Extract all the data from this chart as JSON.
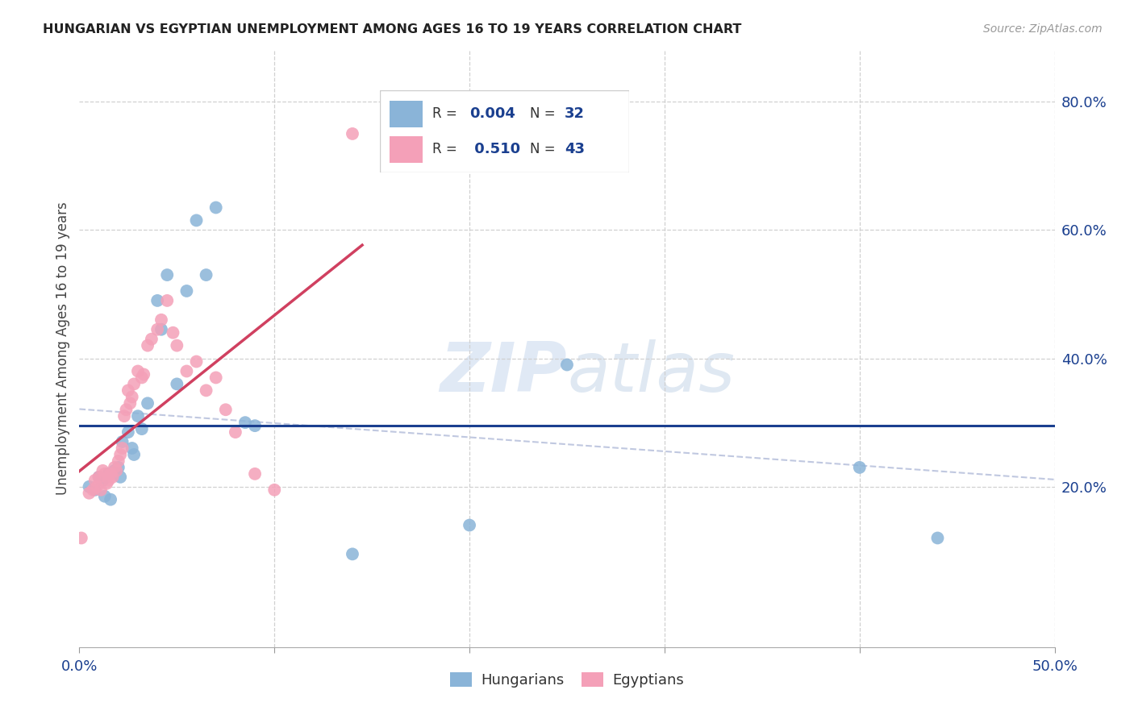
{
  "title": "HUNGARIAN VS EGYPTIAN UNEMPLOYMENT AMONG AGES 16 TO 19 YEARS CORRELATION CHART",
  "source": "Source: ZipAtlas.com",
  "ylabel": "Unemployment Among Ages 16 to 19 years",
  "xlim": [
    0.0,
    0.5
  ],
  "ylim": [
    -0.05,
    0.88
  ],
  "watermark_zip": "ZIP",
  "watermark_atlas": "atlas",
  "hungarian_color": "#8ab4d8",
  "egyptian_color": "#f4a0b8",
  "hungarian_trend_color": "#1a3f8f",
  "egyptian_trend_color": "#d04060",
  "hungarian_dashed_color": "#c0c8e0",
  "hungarian_hline_y": 0.295,
  "hungarian_x": [
    0.005,
    0.008,
    0.01,
    0.012,
    0.013,
    0.015,
    0.016,
    0.018,
    0.02,
    0.021,
    0.022,
    0.025,
    0.027,
    0.028,
    0.03,
    0.032,
    0.035,
    0.04,
    0.042,
    0.045,
    0.05,
    0.055,
    0.06,
    0.065,
    0.07,
    0.085,
    0.09,
    0.14,
    0.2,
    0.25,
    0.4,
    0.44
  ],
  "hungarian_y": [
    0.2,
    0.195,
    0.215,
    0.21,
    0.185,
    0.22,
    0.18,
    0.225,
    0.23,
    0.215,
    0.27,
    0.285,
    0.26,
    0.25,
    0.31,
    0.29,
    0.33,
    0.49,
    0.445,
    0.53,
    0.36,
    0.505,
    0.615,
    0.53,
    0.635,
    0.3,
    0.295,
    0.095,
    0.14,
    0.39,
    0.23,
    0.12
  ],
  "egyptian_x": [
    0.001,
    0.005,
    0.007,
    0.008,
    0.009,
    0.01,
    0.011,
    0.012,
    0.013,
    0.014,
    0.015,
    0.016,
    0.017,
    0.018,
    0.019,
    0.02,
    0.021,
    0.022,
    0.023,
    0.024,
    0.025,
    0.026,
    0.027,
    0.028,
    0.03,
    0.032,
    0.033,
    0.035,
    0.037,
    0.04,
    0.042,
    0.045,
    0.048,
    0.05,
    0.055,
    0.06,
    0.065,
    0.07,
    0.075,
    0.08,
    0.09,
    0.1,
    0.14
  ],
  "egyptian_y": [
    0.12,
    0.19,
    0.195,
    0.21,
    0.2,
    0.215,
    0.195,
    0.225,
    0.22,
    0.205,
    0.21,
    0.22,
    0.215,
    0.23,
    0.225,
    0.24,
    0.25,
    0.26,
    0.31,
    0.32,
    0.35,
    0.33,
    0.34,
    0.36,
    0.38,
    0.37,
    0.375,
    0.42,
    0.43,
    0.445,
    0.46,
    0.49,
    0.44,
    0.42,
    0.38,
    0.395,
    0.35,
    0.37,
    0.32,
    0.285,
    0.22,
    0.195,
    0.75
  ]
}
